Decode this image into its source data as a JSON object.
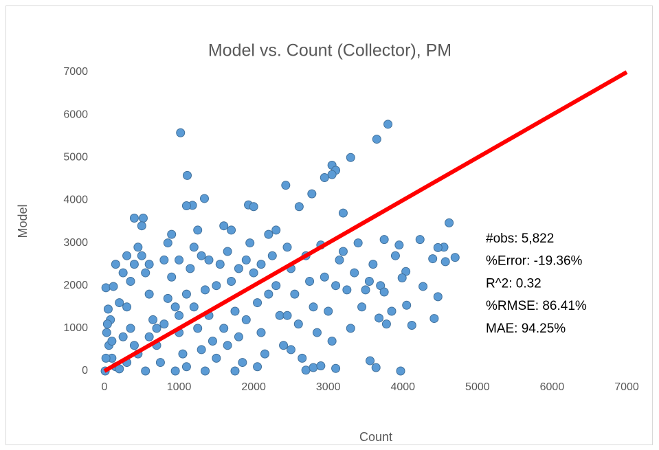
{
  "chart_data": {
    "type": "scatter",
    "title": "Model vs. Count (Collector), PM",
    "x_label": "Count",
    "y_label": "Model",
    "annotations": [
      "#obs: 5,822",
      "%Error: -19.36%",
      "R^2: 0.32",
      "%RMSE: 86.41%",
      "MAE: 94.25%"
    ],
    "xlim": [
      0,
      7000
    ],
    "ylim": [
      0,
      7000
    ],
    "xticks": [
      0,
      1000,
      2000,
      3000,
      4000,
      5000,
      6000,
      7000
    ],
    "yticks": [
      0,
      1000,
      2000,
      3000,
      4000,
      5000,
      6000,
      7000
    ],
    "grid": false,
    "reference_line": {
      "x": [
        0,
        7000
      ],
      "y": [
        0,
        7000
      ],
      "color": "#ff0000"
    },
    "x": [
      1020,
      3800,
      3650,
      3300,
      3050,
      3100,
      3050,
      2950,
      1110,
      2430,
      1340,
      1930,
      2000,
      1180,
      1100,
      400,
      520,
      2780,
      2610,
      3200,
      4620,
      4700,
      4550,
      4470,
      4230,
      3950,
      3750,
      4400,
      4040,
      3990,
      4270,
      4470,
      4050,
      4120,
      4420,
      3680,
      3780,
      3970,
      3640,
      3560,
      3100,
      2700,
      2800,
      2900,
      4570,
      3900,
      20,
      120,
      50,
      80,
      30,
      60,
      100,
      150,
      200,
      250,
      300,
      350,
      400,
      450,
      500,
      550,
      600,
      650,
      700,
      750,
      800,
      850,
      900,
      950,
      1000,
      1050,
      1100,
      1150,
      1200,
      1250,
      1300,
      1350,
      1400,
      1450,
      1500,
      1550,
      1600,
      1650,
      1700,
      1750,
      1800,
      1850,
      1900,
      1950,
      2000,
      2050,
      2100,
      2150,
      2200,
      2250,
      2300,
      2350,
      2400,
      2450,
      2500,
      2550,
      2600,
      2650,
      2700,
      2750,
      2800,
      2850,
      2900,
      2950,
      3000,
      3050,
      3100,
      3150,
      3200,
      3250,
      3300,
      3350,
      3400,
      3450,
      3500,
      3550,
      3600,
      3700,
      3750,
      3850,
      200,
      300,
      500,
      700,
      900,
      1100,
      1300,
      1500,
      1700,
      1900,
      2100,
      2300,
      2500,
      150,
      250,
      600,
      1000,
      1400,
      1800,
      2200,
      100,
      450,
      850,
      1250,
      1650,
      2050,
      2450,
      350,
      550,
      950,
      1350,
      1750,
      10,
      20,
      40,
      300,
      1200,
      1600,
      1000,
      800,
      600,
      400
    ],
    "series": [
      {
        "color": "#5b9bd5",
        "values": [
          5580,
          5780,
          5430,
          5000,
          4820,
          4700,
          4600,
          4530,
          4580,
          4350,
          4040,
          3890,
          3850,
          3880,
          3870,
          3580,
          3580,
          4150,
          3850,
          3700,
          3470,
          2660,
          2900,
          2890,
          3080,
          2950,
          3080,
          2630,
          2330,
          2180,
          1980,
          1740,
          1540,
          1070,
          1230,
          1240,
          1100,
          0,
          80,
          240,
          60,
          20,
          80,
          120,
          2560,
          2700,
          1950,
          1980,
          1450,
          1200,
          900,
          600,
          300,
          100,
          50,
          800,
          1500,
          2100,
          2500,
          2900,
          2700,
          2300,
          1800,
          1200,
          600,
          200,
          2600,
          3000,
          2200,
          1500,
          900,
          400,
          100,
          2400,
          2900,
          3300,
          2700,
          1900,
          1300,
          700,
          300,
          2500,
          3400,
          2800,
          2100,
          1400,
          800,
          200,
          2600,
          3000,
          2300,
          1600,
          900,
          400,
          3200,
          2700,
          2000,
          1300,
          600,
          2900,
          2400,
          1800,
          1100,
          300,
          2700,
          2100,
          1500,
          900,
          2950,
          2200,
          1400,
          700,
          2000,
          2600,
          2800,
          1900,
          1000,
          2300,
          3000,
          1500,
          1900,
          2100,
          2500,
          2000,
          1850,
          1400,
          1600,
          2700,
          3400,
          1000,
          3200,
          1800,
          500,
          2000,
          3300,
          1200,
          2500,
          3300,
          500,
          2500,
          2300,
          2500,
          2600,
          2600,
          2400,
          1800,
          700,
          400,
          1700,
          1000,
          600,
          100,
          1300,
          1000,
          0,
          0,
          0,
          0,
          0,
          300,
          1100,
          200,
          1500,
          1000,
          1300,
          1100,
          800,
          600
        ]
      }
    ]
  }
}
